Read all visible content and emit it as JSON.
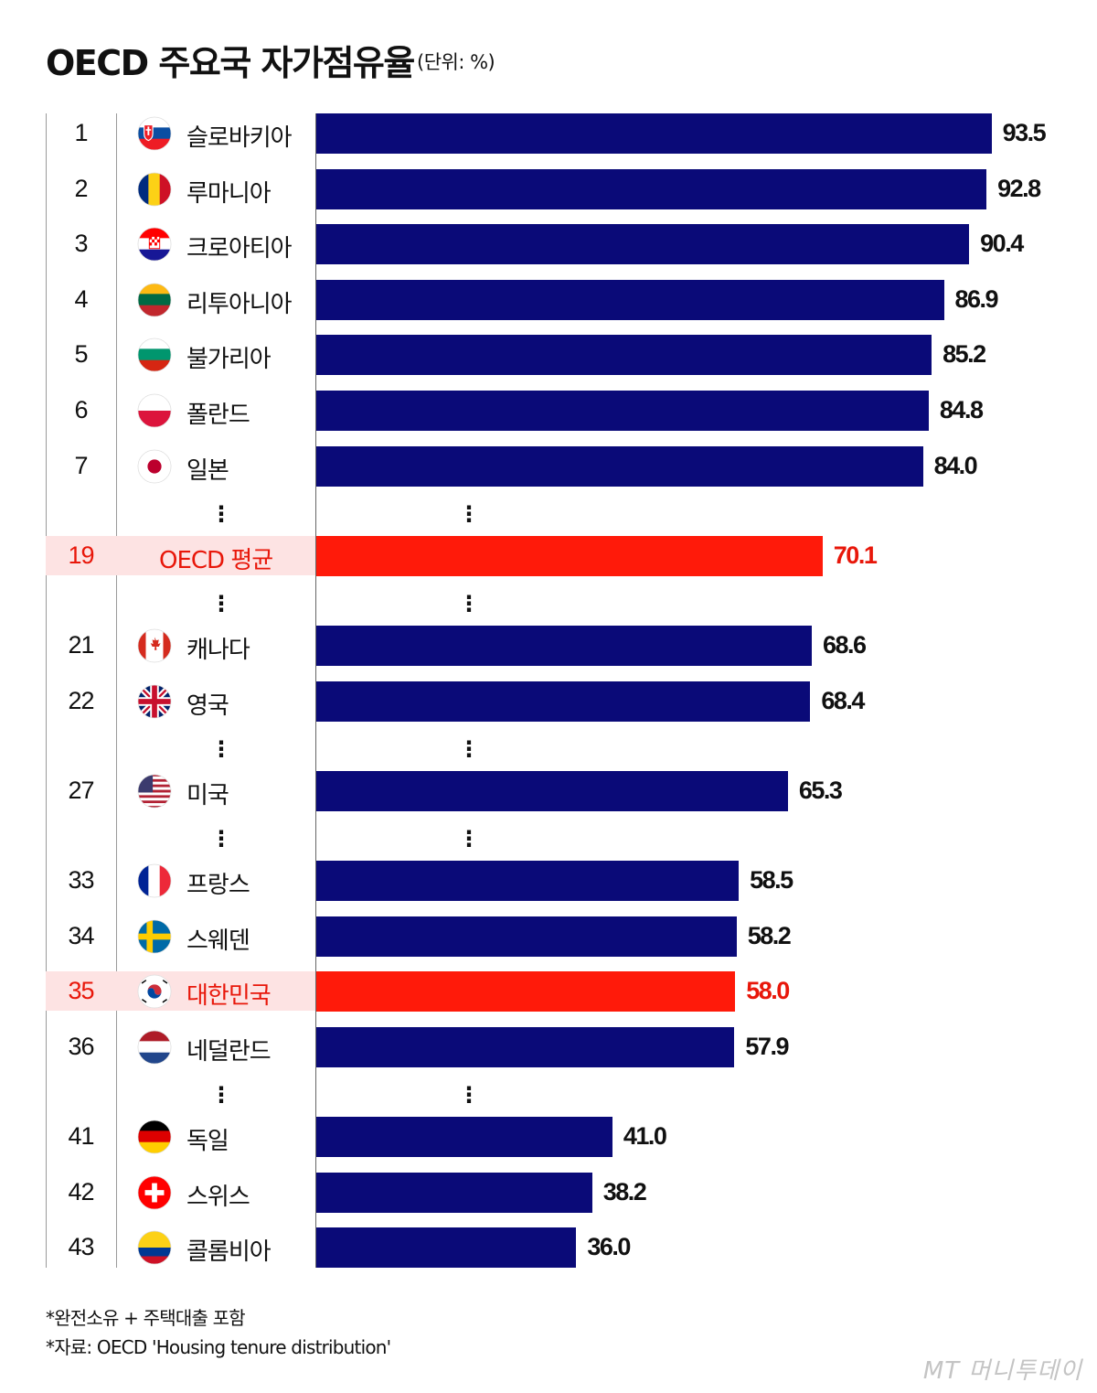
{
  "header": {
    "title": "OECD 주요국 자가점유율",
    "unit": "(단위: %)"
  },
  "colors": {
    "bar": "#0a0a78",
    "highlight_bar": "#ff1a0a",
    "highlight_text": "#e8170a",
    "highlight_row": "#fde3e3"
  },
  "chart_data": {
    "type": "bar",
    "orientation": "horizontal",
    "title": "OECD 주요국 자가점유율",
    "unit": "(단위: %)",
    "xlim": [
      0,
      100
    ],
    "rows": [
      {
        "rank": "1",
        "country": "슬로바키아",
        "value": 93.5,
        "label": "93.5",
        "flag": "slovakia-flag-icon"
      },
      {
        "rank": "2",
        "country": "루마니아",
        "value": 92.8,
        "label": "92.8",
        "flag": "romania-flag-icon"
      },
      {
        "rank": "3",
        "country": "크로아티아",
        "value": 90.4,
        "label": "90.4",
        "flag": "croatia-flag-icon"
      },
      {
        "rank": "4",
        "country": "리투아니아",
        "value": 86.9,
        "label": "86.9",
        "flag": "lithuania-flag-icon"
      },
      {
        "rank": "5",
        "country": "불가리아",
        "value": 85.2,
        "label": "85.2",
        "flag": "bulgaria-flag-icon"
      },
      {
        "rank": "6",
        "country": "폴란드",
        "value": 84.8,
        "label": "84.8",
        "flag": "poland-flag-icon"
      },
      {
        "rank": "7",
        "country": "일본",
        "value": 84.0,
        "label": "84.0",
        "flag": "japan-flag-icon"
      },
      {
        "gap": true
      },
      {
        "rank": "19",
        "country": "OECD 평균",
        "value": 70.1,
        "label": "70.1",
        "highlight": true,
        "flag": ""
      },
      {
        "gap": true
      },
      {
        "rank": "21",
        "country": "캐나다",
        "value": 68.6,
        "label": "68.6",
        "flag": "canada-flag-icon"
      },
      {
        "rank": "22",
        "country": "영국",
        "value": 68.4,
        "label": "68.4",
        "flag": "uk-flag-icon"
      },
      {
        "gap": true
      },
      {
        "rank": "27",
        "country": "미국",
        "value": 65.3,
        "label": "65.3",
        "flag": "usa-flag-icon"
      },
      {
        "gap": true
      },
      {
        "rank": "33",
        "country": "프랑스",
        "value": 58.5,
        "label": "58.5",
        "flag": "france-flag-icon"
      },
      {
        "rank": "34",
        "country": "스웨덴",
        "value": 58.2,
        "label": "58.2",
        "flag": "sweden-flag-icon"
      },
      {
        "rank": "35",
        "country": "대한민국",
        "value": 58.0,
        "label": "58.0",
        "highlight": true,
        "flag": "korea-flag-icon"
      },
      {
        "rank": "36",
        "country": "네덜란드",
        "value": 57.9,
        "label": "57.9",
        "flag": "netherlands-flag-icon"
      },
      {
        "gap": true
      },
      {
        "rank": "41",
        "country": "독일",
        "value": 41.0,
        "label": "41.0",
        "flag": "germany-flag-icon"
      },
      {
        "rank": "42",
        "country": "스위스",
        "value": 38.2,
        "label": "38.2",
        "flag": "switzerland-flag-icon"
      },
      {
        "rank": "43",
        "country": "콜롬비아",
        "value": 36.0,
        "label": "36.0",
        "flag": "colombia-flag-icon"
      }
    ],
    "gap_symbol": "⋮"
  },
  "footnotes": [
    "*완전소유 + 주택대출 포함",
    "*자료: OECD 'Housing tenure distribution'"
  ],
  "watermark": "MT 머니투데이"
}
